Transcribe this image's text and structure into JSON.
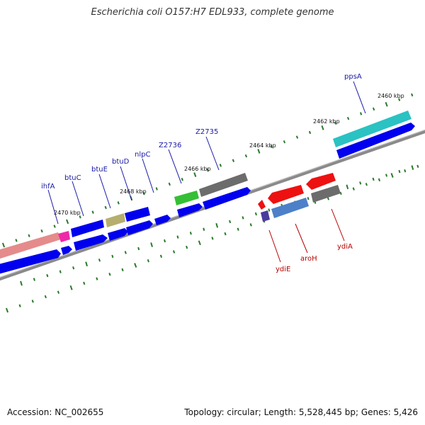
{
  "header": {
    "title": "Escherichia coli O157:H7 EDL933, complete genome"
  },
  "footer": {
    "accession": "Accession: NC_002655",
    "summary": "Topology: circular; Length: 5,528,445 bp; Genes: 5,426"
  },
  "kbp_labels": {
    "k2460": "2460 kbp",
    "k2462": "2462 kbp",
    "k2464": "2464 kbp",
    "k2466": "2466 kbp",
    "k2468": "2468 kbp",
    "k2470": "2470 kbp"
  },
  "genes_forward": {
    "ihfA": "ihfA",
    "btuC": "btuC",
    "btuE": "btuE",
    "btuD": "btuD",
    "nlpC": "nlpC",
    "Z2736": "Z2736",
    "Z2735": "Z2735",
    "ppsA": "ppsA"
  },
  "genes_reverse": {
    "ydiE": "ydiE",
    "aroH": "aroH",
    "ydiA": "ydiA"
  },
  "colors": {
    "cds": "#0000ee",
    "backbone": "#8a8a8a",
    "tick": "#2a7a2a",
    "fwd_label": "#1a1aa8",
    "rev_label": "#b80000"
  }
}
